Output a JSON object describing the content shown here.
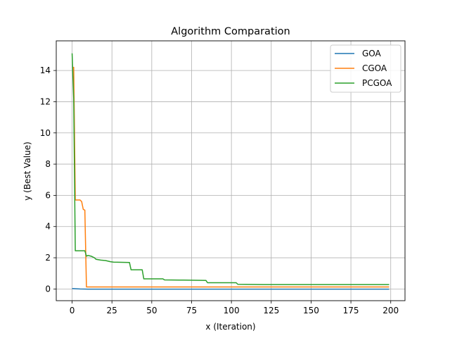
{
  "chart_data": {
    "type": "line",
    "title": "Algorithm Comparation",
    "xlabel": "x (Iteration)",
    "ylabel": "y (Best Value)",
    "xlim": [
      -9.95,
      208.95
    ],
    "ylim": [
      -0.75,
      15.9
    ],
    "grid": true,
    "legend_position": "top-right",
    "xticks": [
      0,
      25,
      50,
      75,
      100,
      125,
      150,
      175,
      200
    ],
    "yticks": [
      0,
      2,
      4,
      6,
      8,
      10,
      12,
      14
    ],
    "series": [
      {
        "name": "GOA",
        "color": "#1f77b4",
        "points": [
          [
            0,
            0.03
          ],
          [
            2,
            0.02
          ],
          [
            5,
            0.0
          ],
          [
            10,
            -0.01
          ],
          [
            199,
            -0.01
          ]
        ]
      },
      {
        "name": "CGOA",
        "color": "#ff7f0e",
        "points": [
          [
            0,
            14.2
          ],
          [
            1,
            14.2
          ],
          [
            2,
            5.7
          ],
          [
            5,
            5.7
          ],
          [
            6,
            5.6
          ],
          [
            7,
            5.1
          ],
          [
            8,
            5.05
          ],
          [
            9,
            0.13
          ],
          [
            199,
            0.13
          ]
        ]
      },
      {
        "name": "PCGOA",
        "color": "#2ca02c",
        "points": [
          [
            0,
            15.1
          ],
          [
            1,
            12.2
          ],
          [
            2,
            2.45
          ],
          [
            8,
            2.45
          ],
          [
            9,
            2.1
          ],
          [
            10,
            2.15
          ],
          [
            12,
            2.1
          ],
          [
            14,
            2.0
          ],
          [
            15,
            1.9
          ],
          [
            18,
            1.85
          ],
          [
            21,
            1.82
          ],
          [
            24,
            1.75
          ],
          [
            26,
            1.72
          ],
          [
            36,
            1.7
          ],
          [
            37,
            1.23
          ],
          [
            44,
            1.23
          ],
          [
            45,
            0.65
          ],
          [
            57,
            0.65
          ],
          [
            58,
            0.58
          ],
          [
            70,
            0.57
          ],
          [
            84,
            0.55
          ],
          [
            85,
            0.4
          ],
          [
            103,
            0.4
          ],
          [
            104,
            0.3
          ],
          [
            120,
            0.28
          ],
          [
            199,
            0.28
          ]
        ]
      }
    ]
  }
}
